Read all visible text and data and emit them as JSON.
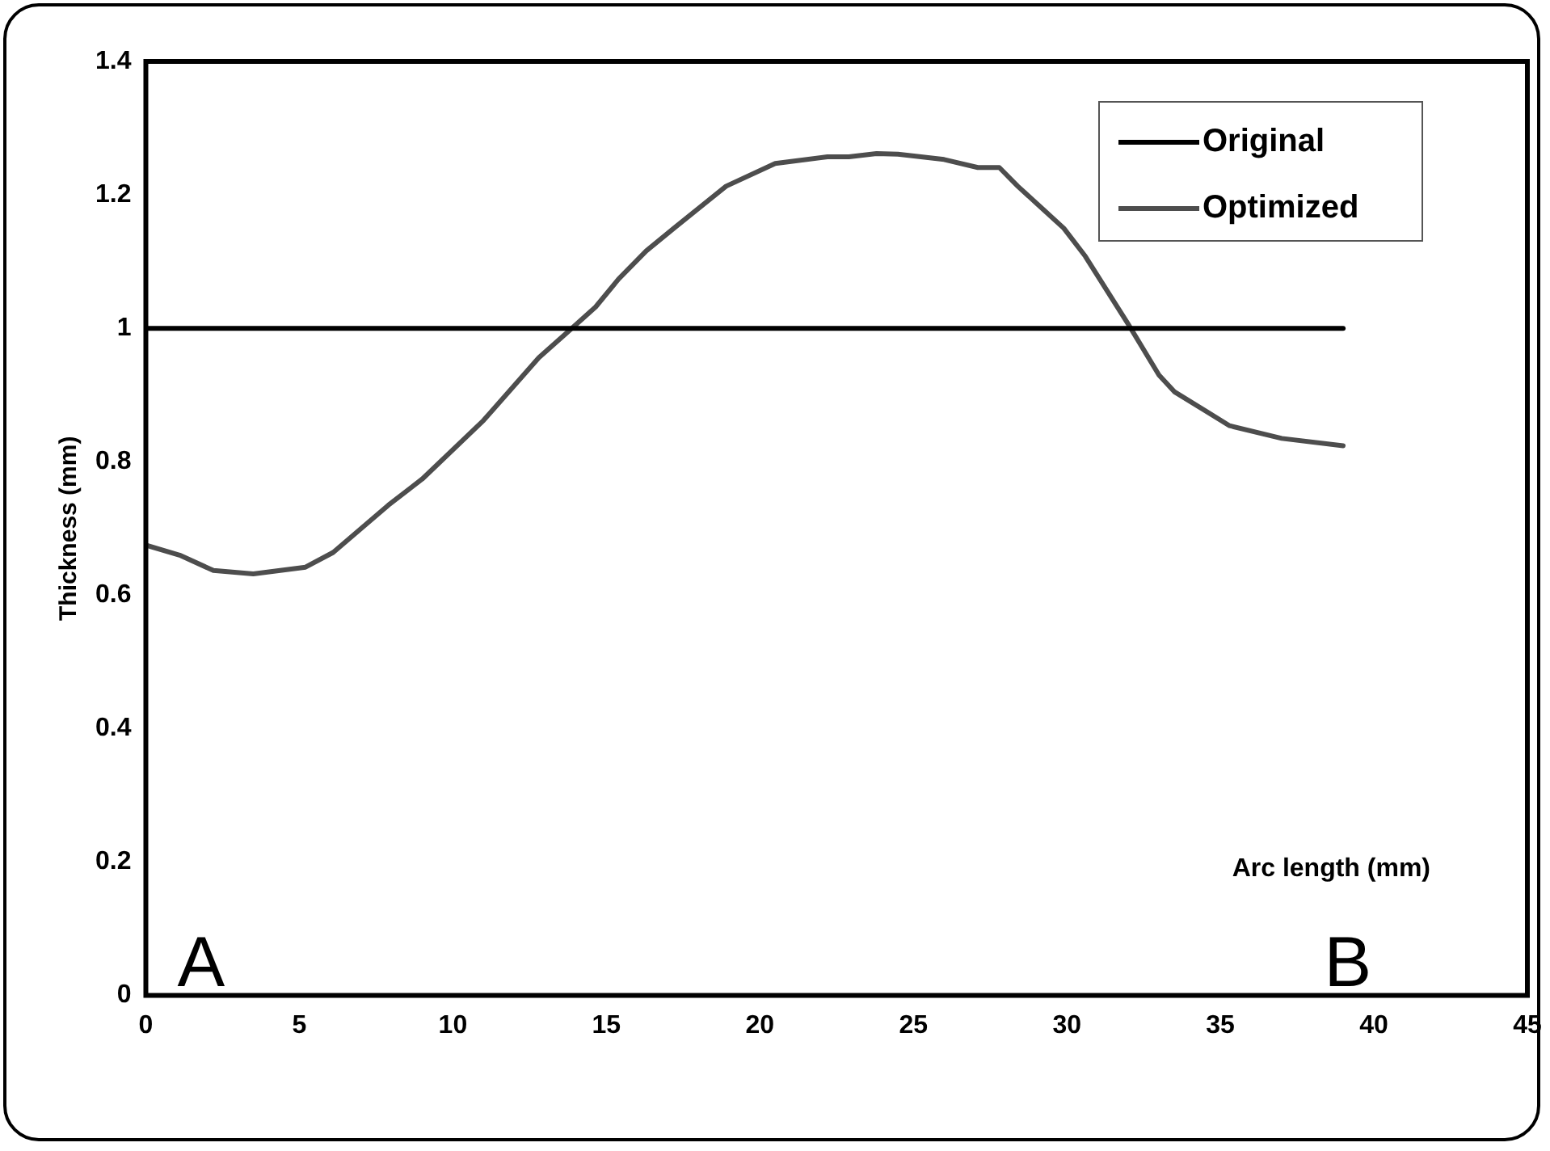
{
  "chart_data": {
    "type": "line",
    "xlabel": "Arc length (mm)",
    "ylabel": "Thickness (mm)",
    "xlim": [
      0,
      45
    ],
    "xticks": [
      0,
      5,
      10,
      15,
      20,
      25,
      30,
      35,
      40,
      45
    ],
    "ylim": [
      0,
      1.4
    ],
    "yticks": [
      0,
      0.2,
      0.4,
      0.6,
      0.8,
      1,
      1.2,
      1.4
    ],
    "grid": false,
    "legend": "top right",
    "marker": "none",
    "line_style": "solid",
    "annotations": [
      "A",
      "B"
    ],
    "series": [
      {
        "name": "Original",
        "color": "#000000",
        "x": [
          0,
          39
        ],
        "values": [
          1,
          1
        ]
      },
      {
        "name": "Optimized",
        "color": "#4d4d4d",
        "x": [
          0,
          1.1,
          2.2,
          3.5,
          5.2,
          6.1,
          7.9,
          9.0,
          11.0,
          12.8,
          13.8,
          14.65,
          15.4,
          16.3,
          17.2,
          18.9,
          20.5,
          22.2,
          22.9,
          23.8,
          24.5,
          26.0,
          27.1,
          27.8,
          28.4,
          29.9,
          30.6,
          32.0,
          33.0,
          33.5,
          35.3,
          37.0,
          39.0
        ],
        "values": [
          0.675,
          0.66,
          0.637,
          0.632,
          0.642,
          0.664,
          0.735,
          0.774,
          0.862,
          0.956,
          0.997,
          1.032,
          1.074,
          1.116,
          1.15,
          1.213,
          1.247,
          1.257,
          1.257,
          1.262,
          1.261,
          1.253,
          1.241,
          1.241,
          1.213,
          1.15,
          1.108,
          1.006,
          0.93,
          0.905,
          0.854,
          0.835,
          0.824
        ]
      }
    ]
  }
}
